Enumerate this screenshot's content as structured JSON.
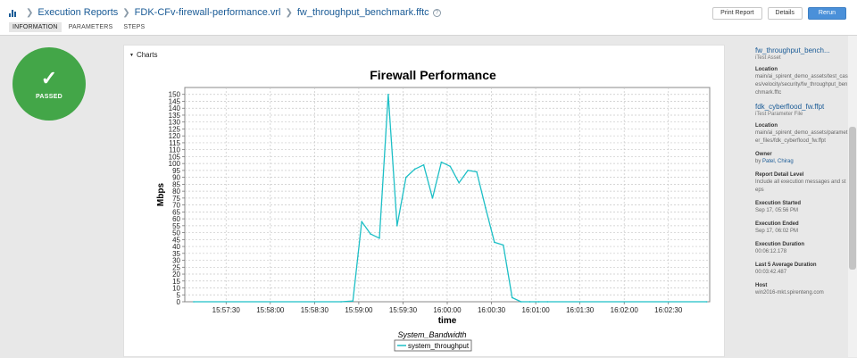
{
  "breadcrumb": {
    "items": [
      "Execution Reports",
      "FDK-CFv-firewall-performance.vrl",
      "fw_throughput_benchmark.fftc"
    ],
    "help": "?"
  },
  "tabs": [
    {
      "label": "INFORMATION",
      "active": true
    },
    {
      "label": "PARAMETERS",
      "active": false
    },
    {
      "label": "STEPS",
      "active": false
    }
  ],
  "toolbar": {
    "print_label": "Print Report",
    "details_label": "Details",
    "rerun_label": "Rerun"
  },
  "status": {
    "label": "PASSED",
    "color": "#43a648"
  },
  "charts_section": {
    "label": "Charts"
  },
  "chart_data": {
    "type": "line",
    "title": "Firewall Performance",
    "xlabel": "time",
    "ylabel": "Mbps",
    "ylim": [
      0,
      155
    ],
    "yticks": [
      0,
      5,
      10,
      15,
      20,
      25,
      30,
      35,
      40,
      45,
      50,
      55,
      60,
      65,
      70,
      75,
      80,
      85,
      90,
      95,
      100,
      105,
      110,
      115,
      120,
      125,
      130,
      135,
      140,
      145,
      150
    ],
    "xlim": [
      "15:57:02",
      "16:02:58"
    ],
    "xticks": [
      "15:57:30",
      "15:58:00",
      "15:58:30",
      "15:59:00",
      "15:59:30",
      "16:00:00",
      "16:00:30",
      "16:01:00",
      "16:01:30",
      "16:02:00",
      "16:02:30"
    ],
    "grid": true,
    "legend": {
      "title": "System_Bandwidth",
      "position": "bottom"
    },
    "series": [
      {
        "name": "system_throughput",
        "color": "#1dbfc6",
        "x": [
          "15:57:08",
          "15:58:48",
          "15:58:56",
          "15:59:02",
          "15:59:08",
          "15:59:14",
          "15:59:20",
          "15:59:26",
          "15:59:32",
          "15:59:38",
          "15:59:44",
          "15:59:50",
          "15:59:56",
          "16:00:02",
          "16:00:08",
          "16:00:14",
          "16:00:20",
          "16:00:26",
          "16:00:32",
          "16:00:38",
          "16:00:44",
          "16:00:50",
          "16:00:56",
          "16:01:02",
          "16:01:08",
          "16:02:56"
        ],
        "values": [
          0,
          0,
          0.5,
          58,
          49,
          46,
          150,
          55,
          90,
          96,
          99,
          75,
          101,
          98,
          86,
          95,
          94,
          68,
          43,
          41,
          3,
          0,
          0,
          0,
          0,
          0
        ]
      }
    ]
  },
  "sidebar": {
    "asset_name": "fw_throughput_bench...",
    "asset_type": "iTest Asset",
    "location_label": "Location",
    "location_value": "main/ai_spirent_demo_assets/test_cases/velocity/security/fw_throughput_benchmark.fftc",
    "param_name": "fdk_cyberflood_fw.ffpt",
    "param_type": "iTest Parameter File",
    "param_location_label": "Location",
    "param_location_value": "main/ai_spirent_demo_assets/parameter_files/fdk_cyberflood_fw.ffpt",
    "owner_label": "Owner",
    "owner_prefix": "by",
    "owner_value": "Patel, Chirag",
    "detail_label": "Report Detail Level",
    "detail_value": "Include all execution messages and steps",
    "started_label": "Execution Started",
    "started_value": "Sep 17, 05:56 PM",
    "ended_label": "Execution Ended",
    "ended_value": "Sep 17, 06:02 PM",
    "duration_label": "Execution Duration",
    "duration_value": "00:06:12.178",
    "avg_label": "Last 5 Average Duration",
    "avg_value": "00:03:42.487",
    "host_label": "Host",
    "host_value": "win2016-mkt.spirenteng.com"
  }
}
